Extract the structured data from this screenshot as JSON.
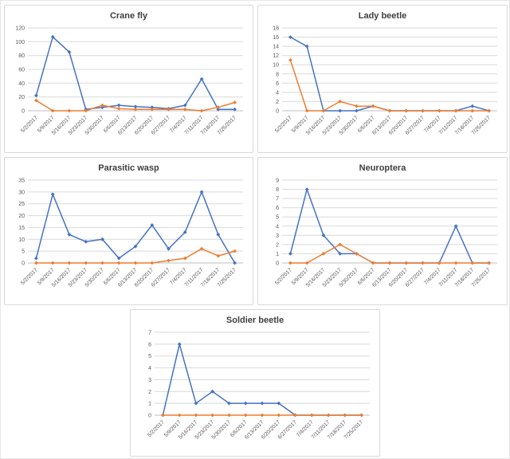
{
  "page": {
    "background": "#ffffff"
  },
  "colors": {
    "series_blue": "#4472C4",
    "series_orange": "#ED7D31",
    "gridline": "#D9D9D9",
    "axis": "#BFBFBF",
    "tick_text": "#595959",
    "title_text": "#404040",
    "panel_border": "#D9D9D9"
  },
  "chart_data": [
    {
      "type": "line",
      "title": "Crane fly",
      "categories": [
        "5/2/2017",
        "5/9/2017",
        "5/16/2017",
        "5/23/2017",
        "5/30/2017",
        "6/6/2017",
        "6/13/2017",
        "6/20/2017",
        "6/27/2017",
        "7/4/2017",
        "7/11/2017",
        "7/18/2017",
        "7/25/2017"
      ],
      "series": [
        {
          "name": "series-blue",
          "color": "#4472C4",
          "values": [
            22,
            107,
            85,
            2,
            5,
            8,
            6,
            5,
            3,
            8,
            46,
            2,
            2
          ]
        },
        {
          "name": "series-orange",
          "color": "#ED7D31",
          "values": [
            15,
            0,
            0,
            0,
            8,
            3,
            2,
            2,
            2,
            2,
            0,
            5,
            12
          ]
        }
      ],
      "ylim": [
        0,
        120
      ],
      "ytick_step": 20,
      "grid": true,
      "legend": "none"
    },
    {
      "type": "line",
      "title": "Lady beetle",
      "categories": [
        "5/2/2017",
        "5/9/2017",
        "5/16/2017",
        "5/23/2017",
        "5/30/2017",
        "6/6/2017",
        "6/13/2017",
        "6/20/2017",
        "6/27/2017",
        "7/4/2017",
        "7/11/2017",
        "7/18/2017",
        "7/25/2017"
      ],
      "series": [
        {
          "name": "series-blue",
          "color": "#4472C4",
          "values": [
            16,
            14,
            0,
            0,
            0,
            1,
            0,
            0,
            0,
            0,
            0,
            1,
            0
          ]
        },
        {
          "name": "series-orange",
          "color": "#ED7D31",
          "values": [
            11,
            0,
            0,
            2,
            1,
            1,
            0,
            0,
            0,
            0,
            0,
            0,
            0
          ]
        }
      ],
      "ylim": [
        0,
        18
      ],
      "ytick_step": 2,
      "grid": true,
      "legend": "none"
    },
    {
      "type": "line",
      "title": "Parasitic wasp",
      "categories": [
        "5/2/2017",
        "5/9/2017",
        "5/16/2017",
        "5/23/2017",
        "5/30/2017",
        "6/6/2017",
        "6/13/2017",
        "6/20/2017",
        "6/27/2017",
        "7/4/2017",
        "7/11/2017",
        "7/18/2017",
        "7/25/2017"
      ],
      "series": [
        {
          "name": "series-blue",
          "color": "#4472C4",
          "values": [
            2,
            29,
            12,
            9,
            10,
            2,
            7,
            16,
            6,
            13,
            30,
            12,
            0
          ]
        },
        {
          "name": "series-orange",
          "color": "#ED7D31",
          "values": [
            0,
            0,
            0,
            0,
            0,
            0,
            0,
            0,
            1,
            2,
            6,
            3,
            5
          ]
        }
      ],
      "ylim": [
        0,
        35
      ],
      "ytick_step": 5,
      "grid": true,
      "legend": "none"
    },
    {
      "type": "line",
      "title": "Neuroptera",
      "categories": [
        "5/2/2017",
        "5/9/2017",
        "5/16/2017",
        "5/23/2017",
        "5/30/2017",
        "6/6/2017",
        "6/13/2017",
        "6/20/2017",
        "6/27/2017",
        "7/4/2017",
        "7/11/2017",
        "7/18/2017",
        "7/25/2017"
      ],
      "series": [
        {
          "name": "series-blue",
          "color": "#4472C4",
          "values": [
            1,
            8,
            3,
            1,
            1,
            0,
            0,
            0,
            0,
            0,
            4,
            0,
            0
          ]
        },
        {
          "name": "series-orange",
          "color": "#ED7D31",
          "values": [
            0,
            0,
            1,
            2,
            1,
            0,
            0,
            0,
            0,
            0,
            0,
            0,
            0
          ]
        }
      ],
      "ylim": [
        0,
        9
      ],
      "ytick_step": 1,
      "grid": true,
      "legend": "none"
    },
    {
      "type": "line",
      "title": "Soldier beetle",
      "categories": [
        "5/2/2017",
        "5/9/2017",
        "5/16/2017",
        "5/23/2017",
        "5/30/2017",
        "6/6/2017",
        "6/13/2017",
        "6/20/2017",
        "6/27/2017",
        "7/4/2017",
        "7/11/2017",
        "7/18/2017",
        "7/25/2017"
      ],
      "series": [
        {
          "name": "series-blue",
          "color": "#4472C4",
          "values": [
            0,
            6,
            1,
            2,
            1,
            1,
            1,
            1,
            0,
            0,
            0,
            0,
            0
          ]
        },
        {
          "name": "series-orange",
          "color": "#ED7D31",
          "values": [
            0,
            0,
            0,
            0,
            0,
            0,
            0,
            0,
            0,
            0,
            0,
            0,
            0
          ]
        }
      ],
      "ylim": [
        0,
        7
      ],
      "ytick_step": 1,
      "grid": true,
      "legend": "none"
    }
  ]
}
